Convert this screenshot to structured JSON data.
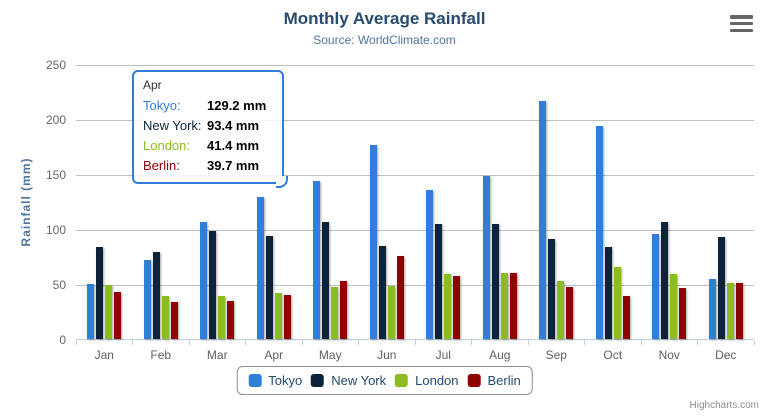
{
  "chart_data": {
    "type": "bar",
    "title": "Monthly Average Rainfall",
    "subtitle": "Source: WorldClimate.com",
    "ylabel": "Rainfall (mm)",
    "xlabel": "",
    "ylim": [
      0,
      250
    ],
    "yticks": [
      0,
      50,
      100,
      150,
      200,
      250
    ],
    "grid": true,
    "legend_position": "bottom",
    "categories": [
      "Jan",
      "Feb",
      "Mar",
      "Apr",
      "May",
      "Jun",
      "Jul",
      "Aug",
      "Sep",
      "Oct",
      "Nov",
      "Dec"
    ],
    "series": [
      {
        "name": "Tokyo",
        "color": "#2f7ed8",
        "values": [
          49.9,
          71.5,
          106.4,
          129.2,
          144.0,
          176.0,
          135.6,
          148.5,
          216.4,
          194.1,
          95.6,
          54.4
        ]
      },
      {
        "name": "New York",
        "color": "#0d233a",
        "values": [
          83.6,
          78.8,
          98.5,
          93.4,
          106.0,
          84.5,
          105.0,
          104.3,
          91.2,
          83.5,
          106.6,
          92.3
        ]
      },
      {
        "name": "London",
        "color": "#8bbc21",
        "values": [
          48.9,
          38.8,
          39.3,
          41.4,
          47.0,
          48.3,
          59.0,
          59.6,
          52.4,
          65.2,
          59.3,
          51.2
        ]
      },
      {
        "name": "Berlin",
        "color": "#910000",
        "values": [
          42.4,
          33.2,
          34.5,
          39.7,
          52.6,
          75.5,
          57.4,
          60.4,
          47.6,
          39.1,
          46.8,
          51.1
        ]
      }
    ]
  },
  "tooltip": {
    "header": "Apr",
    "border_color": "#2f7ed8",
    "rows": [
      {
        "label": "Tokyo:",
        "value": "129.2 mm",
        "color": "#2f7ed8"
      },
      {
        "label": "New York:",
        "value": "93.4 mm",
        "color": "#0d233a"
      },
      {
        "label": "London:",
        "value": "41.4 mm",
        "color": "#8bbc21"
      },
      {
        "label": "Berlin:",
        "value": "39.7 mm",
        "color": "#910000"
      }
    ]
  },
  "credit": "Highcharts.com",
  "theme": {
    "title_color": "#274b6d",
    "subtitle_color": "#4d759e",
    "axis_label_color": "#666666",
    "axis_line_color": "#c0d0e0",
    "gridline_color": "#c0c0c0",
    "legend_text_color": "#274b6d",
    "menu_icon_color": "#666666"
  }
}
